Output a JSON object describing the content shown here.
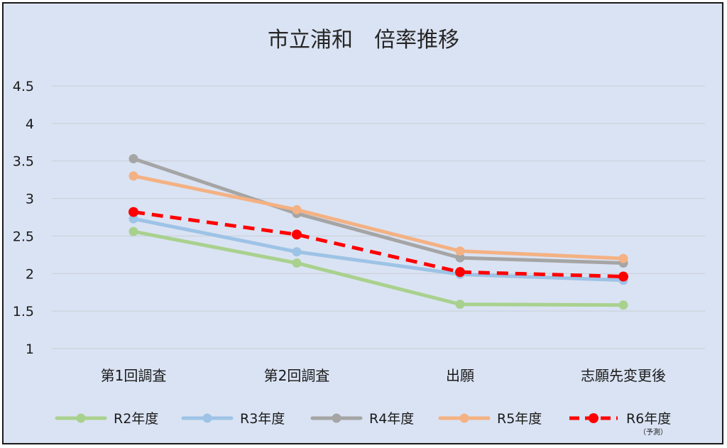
{
  "chart_data": {
    "type": "line",
    "title": "市立浦和　倍率推移",
    "xlabel": "",
    "ylabel": "",
    "categories": [
      "第1回調査",
      "第2回調査",
      "出願",
      "志願先変更後"
    ],
    "ylim": [
      1,
      4.5
    ],
    "yticks": [
      "1",
      "1.5",
      "2",
      "2.5",
      "3",
      "3.5",
      "4",
      "4.5"
    ],
    "grid": true,
    "legend_position": "bottom",
    "series": [
      {
        "name": "R2年度",
        "note": "",
        "values": [
          2.56,
          2.14,
          1.59,
          1.58
        ],
        "color": "#a9d18e",
        "dashed": false
      },
      {
        "name": "R3年度",
        "note": "",
        "values": [
          2.73,
          2.29,
          1.99,
          1.91
        ],
        "color": "#9dc3e6",
        "dashed": false
      },
      {
        "name": "R4年度",
        "note": "",
        "values": [
          3.53,
          2.8,
          2.21,
          2.14
        ],
        "color": "#a5a5a5",
        "dashed": false
      },
      {
        "name": "R5年度",
        "note": "",
        "values": [
          3.3,
          2.85,
          2.3,
          2.2
        ],
        "color": "#f4b183",
        "dashed": false
      },
      {
        "name": "R6年度",
        "note": "（予測）",
        "values": [
          2.82,
          2.52,
          2.02,
          1.96
        ],
        "color": "#ff0000",
        "dashed": true
      }
    ]
  }
}
